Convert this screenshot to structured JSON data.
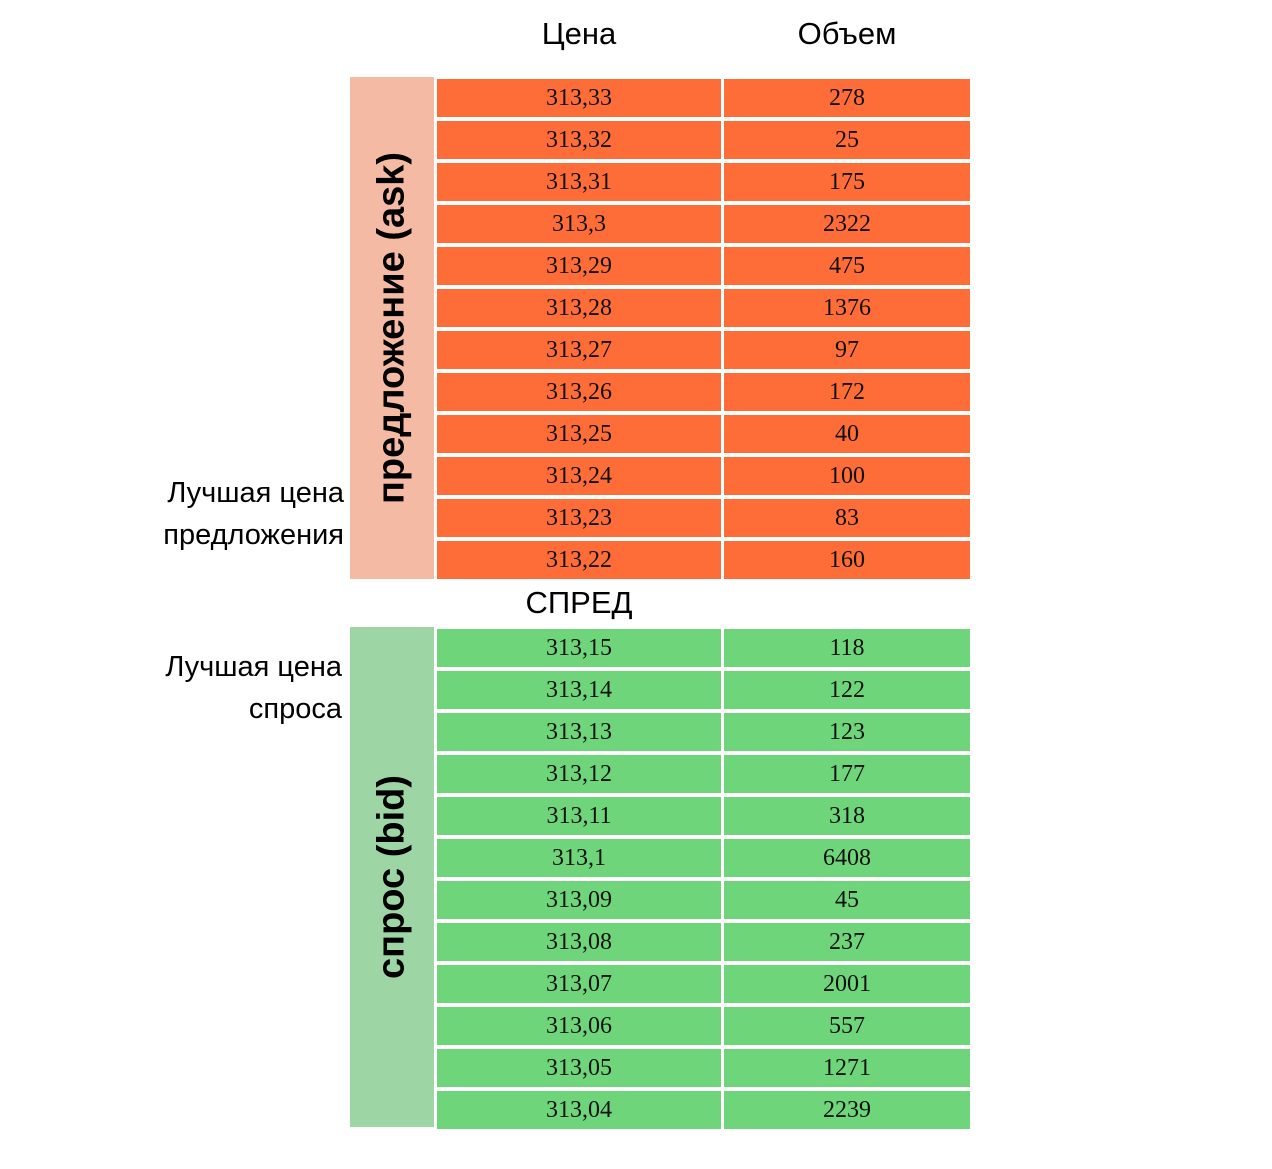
{
  "header": {
    "price": "Цена",
    "volume": "Объем"
  },
  "ask": {
    "label": "предложение (ask)",
    "color": "#fe6c37",
    "band_color": "#f5baa4",
    "rows": [
      {
        "price": "313,33",
        "volume": "278"
      },
      {
        "price": "313,32",
        "volume": "25"
      },
      {
        "price": "313,31",
        "volume": "175"
      },
      {
        "price": "313,3",
        "volume": "2322"
      },
      {
        "price": "313,29",
        "volume": "475"
      },
      {
        "price": "313,28",
        "volume": "1376"
      },
      {
        "price": "313,27",
        "volume": "97"
      },
      {
        "price": "313,26",
        "volume": "172"
      },
      {
        "price": "313,25",
        "volume": "40"
      },
      {
        "price": "313,24",
        "volume": "100"
      },
      {
        "price": "313,23",
        "volume": "83"
      },
      {
        "price": "313,22",
        "volume": "160"
      }
    ]
  },
  "spread": "СПРЕД",
  "bid": {
    "label": "спрос (bid)",
    "color": "#6ed57a",
    "band_color": "#9dd6a4",
    "rows": [
      {
        "price": "313,15",
        "volume": "118"
      },
      {
        "price": "313,14",
        "volume": "122"
      },
      {
        "price": "313,13",
        "volume": "123"
      },
      {
        "price": "313,12",
        "volume": "177"
      },
      {
        "price": "313,11",
        "volume": "318"
      },
      {
        "price": "313,1",
        "volume": "6408"
      },
      {
        "price": "313,09",
        "volume": "45"
      },
      {
        "price": "313,08",
        "volume": "237"
      },
      {
        "price": "313,07",
        "volume": "2001"
      },
      {
        "price": "313,06",
        "volume": "557"
      },
      {
        "price": "313,05",
        "volume": "1271"
      },
      {
        "price": "313,04",
        "volume": "2239"
      }
    ]
  },
  "annotations": {
    "best_ask_line1": "Лучшая цена",
    "best_ask_line2": "предложения",
    "best_bid_line1": "Лучшая цена",
    "best_bid_line2": "спроса"
  }
}
